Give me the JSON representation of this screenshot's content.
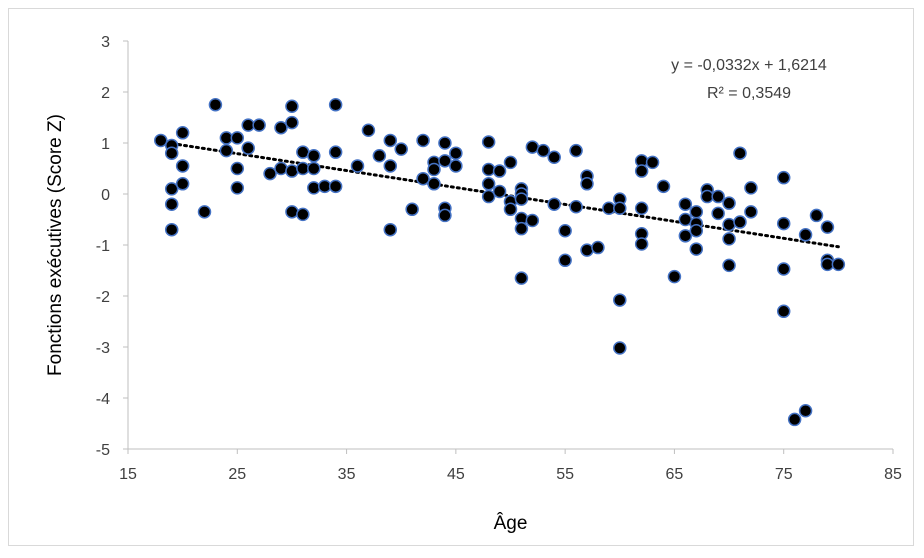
{
  "colors": {
    "marker_fill": "#000000",
    "marker_stroke": "#4472c4",
    "axis": "#bfbfbf",
    "trendline": "#000000",
    "text": "#404040"
  },
  "chart_data": {
    "type": "scatter",
    "title": "",
    "xlabel": "Âge",
    "ylabel": "Fonctions exécutives (Score Z)",
    "xlim": [
      15,
      85
    ],
    "ylim": [
      -5,
      3
    ],
    "xticks": [
      15,
      25,
      35,
      45,
      55,
      65,
      75,
      85
    ],
    "yticks": [
      -5,
      -4,
      -3,
      -2,
      -1,
      0,
      1,
      2,
      3
    ],
    "xtick_labels": [
      "15",
      "25",
      "35",
      "45",
      "55",
      "65",
      "75",
      "85"
    ],
    "ytick_labels": [
      "-5",
      "-4",
      "-3",
      "-2",
      "-1",
      "0",
      "1",
      "2",
      "3"
    ],
    "grid": false,
    "trendline": {
      "style": "dotted",
      "slope": -0.0332,
      "intercept": 1.6214,
      "x_range": [
        18,
        80
      ],
      "equation_label": "y = -0,0332x + 1,6214",
      "r2_label": "R² = 0,3549"
    },
    "points": [
      [
        18,
        1.05
      ],
      [
        19,
        0.95
      ],
      [
        19,
        0.8
      ],
      [
        19,
        0.1
      ],
      [
        19,
        -0.2
      ],
      [
        19,
        -0.7
      ],
      [
        20,
        1.2
      ],
      [
        20,
        0.55
      ],
      [
        20,
        0.2
      ],
      [
        22,
        -0.35
      ],
      [
        23,
        1.75
      ],
      [
        24,
        1.1
      ],
      [
        24,
        0.85
      ],
      [
        25,
        1.1
      ],
      [
        25,
        0.5
      ],
      [
        25,
        0.12
      ],
      [
        26,
        1.35
      ],
      [
        26,
        0.9
      ],
      [
        27,
        1.35
      ],
      [
        28,
        0.4
      ],
      [
        29,
        1.3
      ],
      [
        29,
        0.5
      ],
      [
        30,
        1.72
      ],
      [
        30,
        1.4
      ],
      [
        30,
        0.45
      ],
      [
        30,
        -0.35
      ],
      [
        31,
        0.82
      ],
      [
        31,
        0.5
      ],
      [
        31,
        -0.4
      ],
      [
        32,
        0.75
      ],
      [
        32,
        0.5
      ],
      [
        32,
        0.12
      ],
      [
        33,
        0.15
      ],
      [
        34,
        1.75
      ],
      [
        34,
        0.82
      ],
      [
        34,
        0.15
      ],
      [
        36,
        0.55
      ],
      [
        37,
        1.25
      ],
      [
        38,
        0.75
      ],
      [
        39,
        1.05
      ],
      [
        39,
        0.55
      ],
      [
        39,
        -0.7
      ],
      [
        40,
        0.88
      ],
      [
        41,
        -0.3
      ],
      [
        42,
        1.05
      ],
      [
        42,
        0.3
      ],
      [
        43,
        0.62
      ],
      [
        43,
        0.48
      ],
      [
        43,
        0.2
      ],
      [
        44,
        1.0
      ],
      [
        44,
        0.65
      ],
      [
        44,
        -0.28
      ],
      [
        44,
        -0.42
      ],
      [
        45,
        0.8
      ],
      [
        45,
        0.55
      ],
      [
        48,
        1.02
      ],
      [
        48,
        0.48
      ],
      [
        48,
        0.2
      ],
      [
        48,
        -0.05
      ],
      [
        49,
        0.45
      ],
      [
        49,
        0.05
      ],
      [
        50,
        0.62
      ],
      [
        50,
        -0.15
      ],
      [
        50,
        -0.3
      ],
      [
        51,
        0.1
      ],
      [
        51,
        0.0
      ],
      [
        51,
        -0.1
      ],
      [
        51,
        -0.48
      ],
      [
        51,
        -0.68
      ],
      [
        51,
        -1.65
      ],
      [
        52,
        0.92
      ],
      [
        52,
        -0.52
      ],
      [
        53,
        0.85
      ],
      [
        54,
        0.72
      ],
      [
        54,
        -0.2
      ],
      [
        55,
        -0.72
      ],
      [
        55,
        -1.3
      ],
      [
        56,
        0.85
      ],
      [
        56,
        -0.25
      ],
      [
        57,
        0.35
      ],
      [
        57,
        0.2
      ],
      [
        57,
        -1.1
      ],
      [
        58,
        -1.05
      ],
      [
        59,
        -0.28
      ],
      [
        60,
        -0.1
      ],
      [
        60,
        -0.28
      ],
      [
        60,
        -2.08
      ],
      [
        60,
        -3.02
      ],
      [
        62,
        0.65
      ],
      [
        62,
        0.45
      ],
      [
        62,
        -0.28
      ],
      [
        62,
        -0.78
      ],
      [
        62,
        -0.98
      ],
      [
        63,
        0.62
      ],
      [
        64,
        0.15
      ],
      [
        65,
        -1.62
      ],
      [
        66,
        -0.2
      ],
      [
        66,
        -0.5
      ],
      [
        66,
        -0.82
      ],
      [
        67,
        -0.35
      ],
      [
        67,
        -0.58
      ],
      [
        67,
        -0.72
      ],
      [
        67,
        -1.08
      ],
      [
        68,
        0.08
      ],
      [
        68,
        -0.05
      ],
      [
        69,
        -0.05
      ],
      [
        69,
        -0.38
      ],
      [
        70,
        -0.18
      ],
      [
        70,
        -0.6
      ],
      [
        70,
        -0.88
      ],
      [
        70,
        -1.4
      ],
      [
        71,
        0.8
      ],
      [
        71,
        -0.55
      ],
      [
        72,
        0.12
      ],
      [
        72,
        -0.35
      ],
      [
        75,
        0.32
      ],
      [
        75,
        -0.58
      ],
      [
        75,
        -1.47
      ],
      [
        75,
        -2.3
      ],
      [
        76,
        -4.42
      ],
      [
        77,
        -4.25
      ],
      [
        77,
        -0.8
      ],
      [
        78,
        -0.42
      ],
      [
        79,
        -0.65
      ],
      [
        79,
        -1.3
      ],
      [
        79,
        -1.38
      ],
      [
        80,
        -1.38
      ]
    ]
  }
}
